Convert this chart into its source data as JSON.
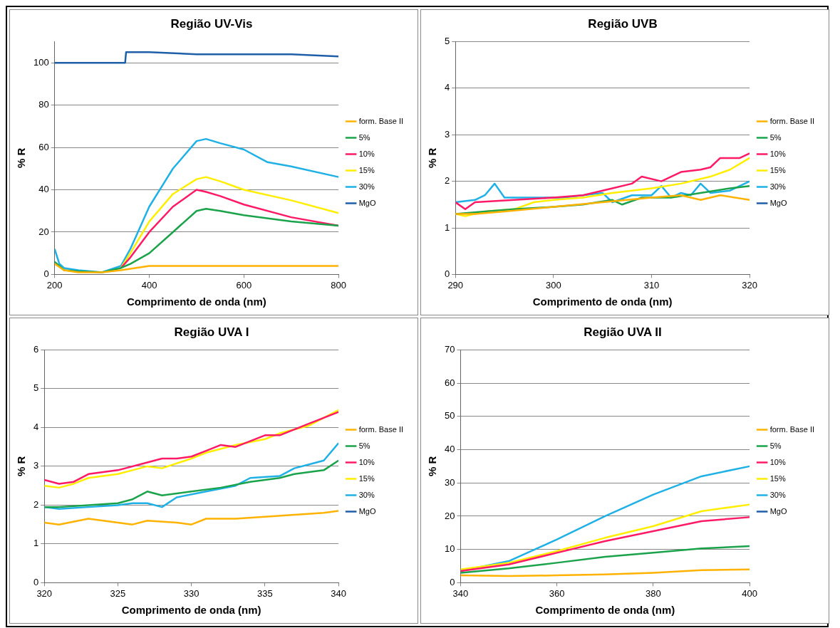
{
  "chart_data": [
    {
      "type": "line",
      "title": "Região UV-Vis",
      "xlabel": "Comprimento de onda (nm)",
      "ylabel": "% R",
      "xlim": [
        200,
        800
      ],
      "xticks": [
        200,
        400,
        600,
        800
      ],
      "ylim": [
        0,
        110
      ],
      "yticks": [
        0,
        20,
        40,
        60,
        80,
        100
      ],
      "grid": "y",
      "legend": "right",
      "marker": "none",
      "series": [
        {
          "name": "form. Base II",
          "color": "#ffb300",
          "x": [
            200,
            220,
            250,
            300,
            340,
            400,
            500,
            600,
            700,
            800
          ],
          "values": [
            5,
            2,
            1,
            1,
            2,
            4,
            4,
            4,
            4,
            4
          ]
        },
        {
          "name": "5%",
          "color": "#1aa34a",
          "x": [
            200,
            220,
            250,
            300,
            340,
            360,
            400,
            450,
            500,
            520,
            550,
            600,
            700,
            800
          ],
          "values": [
            6,
            2,
            1.5,
            1,
            3,
            5,
            10,
            20,
            30,
            31,
            30,
            28,
            25,
            23
          ]
        },
        {
          "name": "10%",
          "color": "#ff1a66",
          "x": [
            340,
            360,
            400,
            450,
            500,
            520,
            550,
            600,
            700,
            800
          ],
          "values": [
            3,
            8,
            20,
            32,
            40,
            39,
            37,
            33,
            27,
            23
          ]
        },
        {
          "name": "15%",
          "color": "#ffee00",
          "x": [
            340,
            360,
            400,
            450,
            500,
            520,
            550,
            600,
            700,
            800
          ],
          "values": [
            3,
            10,
            25,
            38,
            45,
            46,
            44,
            40,
            35,
            29
          ]
        },
        {
          "name": "30%",
          "color": "#1fb0e6",
          "x": [
            200,
            210,
            220,
            250,
            300,
            340,
            360,
            400,
            450,
            500,
            520,
            550,
            600,
            650,
            700,
            800
          ],
          "values": [
            12,
            5,
            3,
            2,
            1,
            4,
            12,
            32,
            50,
            63,
            64,
            62,
            59,
            53,
            51,
            46
          ]
        },
        {
          "name": "MgO",
          "color": "#1f5fa8",
          "x": [
            200,
            250,
            300,
            349,
            351,
            400,
            500,
            600,
            700,
            800
          ],
          "values": [
            100,
            100,
            100,
            100,
            105,
            105,
            104,
            104,
            104,
            103
          ]
        }
      ]
    },
    {
      "type": "line",
      "title": "Região UVB",
      "xlabel": "Comprimento de onda (nm)",
      "ylabel": "% R",
      "xlim": [
        290,
        320
      ],
      "xticks": [
        290,
        300,
        310,
        320
      ],
      "ylim": [
        0,
        5
      ],
      "yticks": [
        0,
        1,
        2,
        3,
        4,
        5
      ],
      "grid": "y",
      "legend": "right",
      "marker": "none",
      "series": [
        {
          "name": "form. Base II",
          "color": "#ffb300",
          "x": [
            290,
            292,
            295,
            300,
            305,
            310,
            313,
            315,
            317,
            320
          ],
          "values": [
            1.3,
            1.3,
            1.35,
            1.45,
            1.55,
            1.65,
            1.7,
            1.6,
            1.7,
            1.6
          ]
        },
        {
          "name": "5%",
          "color": "#1aa34a",
          "x": [
            290,
            293,
            296,
            300,
            303,
            306,
            307,
            309,
            312,
            315,
            318,
            320
          ],
          "values": [
            1.3,
            1.35,
            1.4,
            1.45,
            1.5,
            1.6,
            1.5,
            1.65,
            1.65,
            1.75,
            1.85,
            1.9
          ]
        },
        {
          "name": "10%",
          "color": "#ff1a66",
          "x": [
            290,
            291,
            292,
            296,
            300,
            303,
            306,
            308,
            309,
            311,
            313,
            315,
            316,
            317,
            319,
            320
          ],
          "values": [
            1.55,
            1.4,
            1.55,
            1.6,
            1.65,
            1.7,
            1.85,
            1.95,
            2.1,
            2.0,
            2.2,
            2.25,
            2.3,
            2.5,
            2.5,
            2.6
          ]
        },
        {
          "name": "15%",
          "color": "#ffee00",
          "x": [
            290,
            291,
            293,
            296,
            298,
            300,
            303,
            306,
            310,
            313,
            316,
            318,
            320
          ],
          "values": [
            1.3,
            1.25,
            1.35,
            1.4,
            1.55,
            1.6,
            1.65,
            1.75,
            1.85,
            1.95,
            2.1,
            2.25,
            2.5
          ]
        },
        {
          "name": "30%",
          "color": "#1fb0e6",
          "x": [
            290,
            292,
            293,
            294,
            295,
            298,
            301,
            303,
            305,
            306,
            308,
            310,
            311,
            312,
            313,
            314,
            315,
            316,
            318,
            320
          ],
          "values": [
            1.55,
            1.6,
            1.7,
            1.95,
            1.65,
            1.65,
            1.65,
            1.7,
            1.75,
            1.55,
            1.7,
            1.7,
            1.9,
            1.65,
            1.75,
            1.7,
            1.95,
            1.75,
            1.8,
            2.0
          ]
        },
        {
          "name": "MgO",
          "color": "#1f5fa8"
        }
      ]
    },
    {
      "type": "line",
      "title": "Região UVA I",
      "xlabel": "Comprimento de onda (nm)",
      "ylabel": "% R",
      "xlim": [
        320,
        340
      ],
      "xticks": [
        320,
        325,
        330,
        335,
        340
      ],
      "ylim": [
        0,
        6
      ],
      "yticks": [
        0,
        1,
        2,
        3,
        4,
        5,
        6
      ],
      "grid": "y",
      "legend": "right",
      "marker": "none",
      "series": [
        {
          "name": "form. Base II",
          "color": "#ffb300",
          "x": [
            320,
            321,
            323,
            325,
            326,
            327,
            329,
            330,
            331,
            333,
            335,
            337,
            339,
            340
          ],
          "values": [
            1.55,
            1.5,
            1.65,
            1.55,
            1.5,
            1.6,
            1.55,
            1.5,
            1.65,
            1.65,
            1.7,
            1.75,
            1.8,
            1.85
          ]
        },
        {
          "name": "5%",
          "color": "#1aa34a",
          "x": [
            320,
            321,
            323,
            325,
            326,
            327,
            328,
            330,
            332,
            334,
            336,
            337,
            339,
            340
          ],
          "values": [
            1.95,
            1.95,
            2.0,
            2.05,
            2.15,
            2.35,
            2.25,
            2.35,
            2.45,
            2.6,
            2.7,
            2.8,
            2.9,
            3.15
          ]
        },
        {
          "name": "10%",
          "color": "#ff1a66",
          "x": [
            320,
            321,
            322,
            323,
            325,
            327,
            328,
            329,
            330,
            331,
            332,
            333,
            335,
            336,
            338,
            340
          ],
          "values": [
            2.65,
            2.55,
            2.6,
            2.8,
            2.9,
            3.1,
            3.2,
            3.2,
            3.25,
            3.4,
            3.55,
            3.5,
            3.8,
            3.8,
            4.1,
            4.4
          ]
        },
        {
          "name": "15%",
          "color": "#ffee00",
          "x": [
            320,
            321,
            322,
            323,
            325,
            326,
            327,
            328,
            330,
            331,
            333,
            335,
            336,
            338,
            340
          ],
          "values": [
            2.5,
            2.45,
            2.55,
            2.7,
            2.8,
            2.9,
            3.0,
            2.95,
            3.2,
            3.35,
            3.55,
            3.7,
            3.85,
            4.05,
            4.45
          ]
        },
        {
          "name": "30%",
          "color": "#1fb0e6",
          "x": [
            320,
            321,
            323,
            325,
            326,
            327,
            328,
            329,
            331,
            333,
            334,
            336,
            337,
            338,
            339,
            340
          ],
          "values": [
            1.95,
            1.9,
            1.95,
            2.0,
            2.05,
            2.05,
            1.95,
            2.2,
            2.35,
            2.5,
            2.7,
            2.75,
            2.95,
            3.05,
            3.15,
            3.6
          ]
        },
        {
          "name": "MgO",
          "color": "#1f5fa8"
        }
      ]
    },
    {
      "type": "line",
      "title": "Região UVA II",
      "xlabel": "Comprimento de onda (nm)",
      "ylabel": "% R",
      "xlim": [
        340,
        400
      ],
      "xticks": [
        340,
        360,
        380,
        400
      ],
      "ylim": [
        0,
        70
      ],
      "yticks": [
        0,
        10,
        20,
        30,
        40,
        50,
        60,
        70
      ],
      "grid": "y",
      "legend": "right",
      "marker": "none",
      "series": [
        {
          "name": "form. Base II",
          "color": "#ffb300",
          "x": [
            340,
            350,
            360,
            370,
            380,
            390,
            400
          ],
          "values": [
            2.2,
            2,
            2.2,
            2.5,
            3,
            3.8,
            4
          ]
        },
        {
          "name": "5%",
          "color": "#1aa34a",
          "x": [
            340,
            350,
            360,
            370,
            380,
            390,
            400
          ],
          "values": [
            3,
            4.3,
            6,
            7.8,
            9,
            10.3,
            11
          ]
        },
        {
          "name": "10%",
          "color": "#ff1a66",
          "x": [
            340,
            350,
            360,
            370,
            380,
            390,
            400
          ],
          "values": [
            3.5,
            5.5,
            9,
            12.5,
            15.5,
            18.5,
            19.7
          ]
        },
        {
          "name": "15%",
          "color": "#ffee00",
          "x": [
            340,
            350,
            360,
            370,
            380,
            390,
            400
          ],
          "values": [
            4,
            6,
            9.5,
            13.5,
            17,
            21.5,
            23.5
          ]
        },
        {
          "name": "30%",
          "color": "#1fb0e6",
          "x": [
            340,
            350,
            360,
            370,
            380,
            390,
            400
          ],
          "values": [
            3.5,
            6.5,
            13,
            20,
            26.5,
            32,
            35
          ]
        },
        {
          "name": "MgO",
          "color": "#1f5fa8"
        }
      ]
    }
  ]
}
